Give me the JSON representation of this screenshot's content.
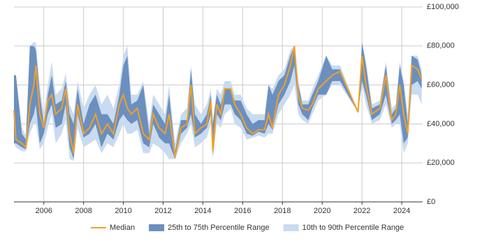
{
  "chart_data": {
    "type": "range-line",
    "x": [
      2004.5,
      2004.6,
      2004.9,
      2005.1,
      2005.3,
      2005.5,
      2005.6,
      2005.8,
      2006.0,
      2006.2,
      2006.4,
      2006.6,
      2006.9,
      2007.1,
      2007.3,
      2007.5,
      2007.7,
      2008.0,
      2008.3,
      2008.6,
      2008.9,
      2009.2,
      2009.5,
      2009.8,
      2010.0,
      2010.2,
      2010.4,
      2010.7,
      2011.0,
      2011.3,
      2011.5,
      2011.8,
      2012.1,
      2012.3,
      2012.6,
      2012.9,
      2013.2,
      2013.4,
      2013.6,
      2013.9,
      2014.2,
      2014.4,
      2014.5,
      2014.7,
      2014.9,
      2015.1,
      2015.4,
      2015.6,
      2015.9,
      2016.2,
      2016.5,
      2016.8,
      2017.1,
      2017.3,
      2017.5,
      2017.8,
      2018.1,
      2018.4,
      2018.6,
      2018.8,
      2019.0,
      2019.3,
      2019.5,
      2019.8,
      2020.2,
      2020.5,
      2020.9,
      2021.8,
      2022.0,
      2022.2,
      2022.5,
      2022.9,
      2023.2,
      2023.5,
      2023.7,
      2023.9,
      2024.1,
      2024.3,
      2024.5,
      2024.8,
      2025.0
    ],
    "series": [
      {
        "name": "Median",
        "color": "#f0a028",
        "values": [
          47000,
          32000,
          30000,
          28000,
          50000,
          60000,
          70000,
          45000,
          38000,
          52000,
          55000,
          45000,
          48000,
          58000,
          35000,
          25000,
          50000,
          35000,
          38000,
          45000,
          35000,
          40000,
          35000,
          50000,
          55000,
          48000,
          45000,
          48000,
          35000,
          32000,
          45000,
          38000,
          35000,
          45000,
          23000,
          38000,
          40000,
          60000,
          35000,
          38000,
          40000,
          52000,
          26000,
          50000,
          45000,
          58000,
          58000,
          50000,
          45000,
          38000,
          35000,
          37000,
          37000,
          45000,
          38000,
          55000,
          60000,
          70000,
          80000,
          55000,
          48000,
          47000,
          50000,
          58000,
          62000,
          65000,
          67000,
          46000,
          75000,
          60000,
          45000,
          48000,
          65000,
          42000,
          45000,
          60000,
          45000,
          35000,
          70000,
          68000,
          63000
        ]
      },
      {
        "name": "25th to 75th Percentile Range",
        "color": "#6b8fbf",
        "low": [
          30000,
          30000,
          28000,
          27000,
          40000,
          45000,
          50000,
          30000,
          35000,
          45000,
          50000,
          38000,
          40000,
          50000,
          28000,
          22000,
          45000,
          33000,
          35000,
          40000,
          28000,
          35000,
          32000,
          42000,
          45000,
          42000,
          40000,
          42000,
          30000,
          28000,
          40000,
          33000,
          30000,
          30000,
          22000,
          35000,
          38000,
          45000,
          33000,
          35000,
          38000,
          45000,
          24000,
          45000,
          42000,
          50000,
          50000,
          45000,
          42000,
          35000,
          34000,
          36000,
          35000,
          40000,
          37000,
          50000,
          55000,
          62000,
          70000,
          50000,
          45000,
          42000,
          48000,
          55000,
          55000,
          62000,
          62000,
          46000,
          62000,
          55000,
          42000,
          45000,
          55000,
          40000,
          42000,
          45000,
          30000,
          33000,
          60000,
          62000,
          58000
        ],
        "high": [
          65000,
          65000,
          35000,
          32000,
          80000,
          80000,
          78000,
          55000,
          40000,
          55000,
          65000,
          50000,
          52000,
          62000,
          45000,
          40000,
          58000,
          40000,
          50000,
          55000,
          45000,
          45000,
          40000,
          55000,
          70000,
          75000,
          50000,
          52000,
          60000,
          35000,
          50000,
          45000,
          40000,
          55000,
          26000,
          42000,
          42000,
          68000,
          45000,
          40000,
          45000,
          55000,
          40000,
          55000,
          50000,
          58000,
          58000,
          52000,
          52000,
          45000,
          40000,
          42000,
          42000,
          60000,
          55000,
          62000,
          65000,
          75000,
          80000,
          60000,
          50000,
          50000,
          55000,
          62000,
          75000,
          68000,
          68000,
          46000,
          82000,
          70000,
          48000,
          50000,
          70000,
          45000,
          48000,
          70000,
          60000,
          40000,
          75000,
          73000,
          65000
        ]
      },
      {
        "name": "10th to 90th Percentile Range",
        "color": "#c9dbef",
        "low": [
          30000,
          28000,
          26000,
          26000,
          35000,
          40000,
          40000,
          27000,
          30000,
          38000,
          45000,
          30000,
          35000,
          42000,
          22000,
          21000,
          38000,
          28000,
          30000,
          32000,
          25000,
          30000,
          28000,
          35000,
          40000,
          35000,
          35000,
          37000,
          25000,
          25000,
          30000,
          28000,
          25000,
          22000,
          22000,
          30000,
          35000,
          40000,
          28000,
          30000,
          33000,
          40000,
          22000,
          40000,
          38000,
          45000,
          48000,
          40000,
          38000,
          32000,
          33000,
          34000,
          33000,
          35000,
          35000,
          45000,
          50000,
          55000,
          60000,
          45000,
          42000,
          40000,
          45000,
          52000,
          55000,
          60000,
          60000,
          46000,
          60000,
          50000,
          40000,
          42000,
          50000,
          38000,
          40000,
          40000,
          25000,
          30000,
          55000,
          55000,
          50000
        ],
        "high": [
          65000,
          65000,
          38000,
          34000,
          80000,
          82000,
          82000,
          60000,
          45000,
          60000,
          72000,
          55000,
          58000,
          66000,
          50000,
          45000,
          62000,
          48000,
          55000,
          60000,
          50000,
          55000,
          48000,
          60000,
          75000,
          80000,
          55000,
          55000,
          62000,
          40000,
          55000,
          50000,
          45000,
          60000,
          30000,
          45000,
          48000,
          70000,
          50000,
          45000,
          50000,
          58000,
          42000,
          58000,
          55000,
          62000,
          62000,
          55000,
          55000,
          48000,
          45000,
          45000,
          45000,
          60000,
          58000,
          65000,
          68000,
          78000,
          80000,
          62000,
          52000,
          52000,
          58000,
          65000,
          75000,
          70000,
          70000,
          46000,
          82000,
          72000,
          50000,
          52000,
          72000,
          48000,
          50000,
          72000,
          62000,
          45000,
          75000,
          75000,
          68000
        ]
      }
    ],
    "xlim": [
      2004.5,
      2025.05
    ],
    "xticks": [
      2006,
      2008,
      2010,
      2012,
      2014,
      2016,
      2018,
      2020,
      2022,
      2024
    ],
    "ylim": [
      0,
      100000
    ],
    "yticks": [
      {
        "value": 0,
        "label": "£0"
      },
      {
        "value": 20000,
        "label": "£20,000"
      },
      {
        "value": 40000,
        "label": "£40,000"
      },
      {
        "value": 60000,
        "label": "£60,000"
      },
      {
        "value": 80000,
        "label": "£80,000"
      },
      {
        "value": 100000,
        "label": "£100,000"
      }
    ],
    "grid": true
  }
}
